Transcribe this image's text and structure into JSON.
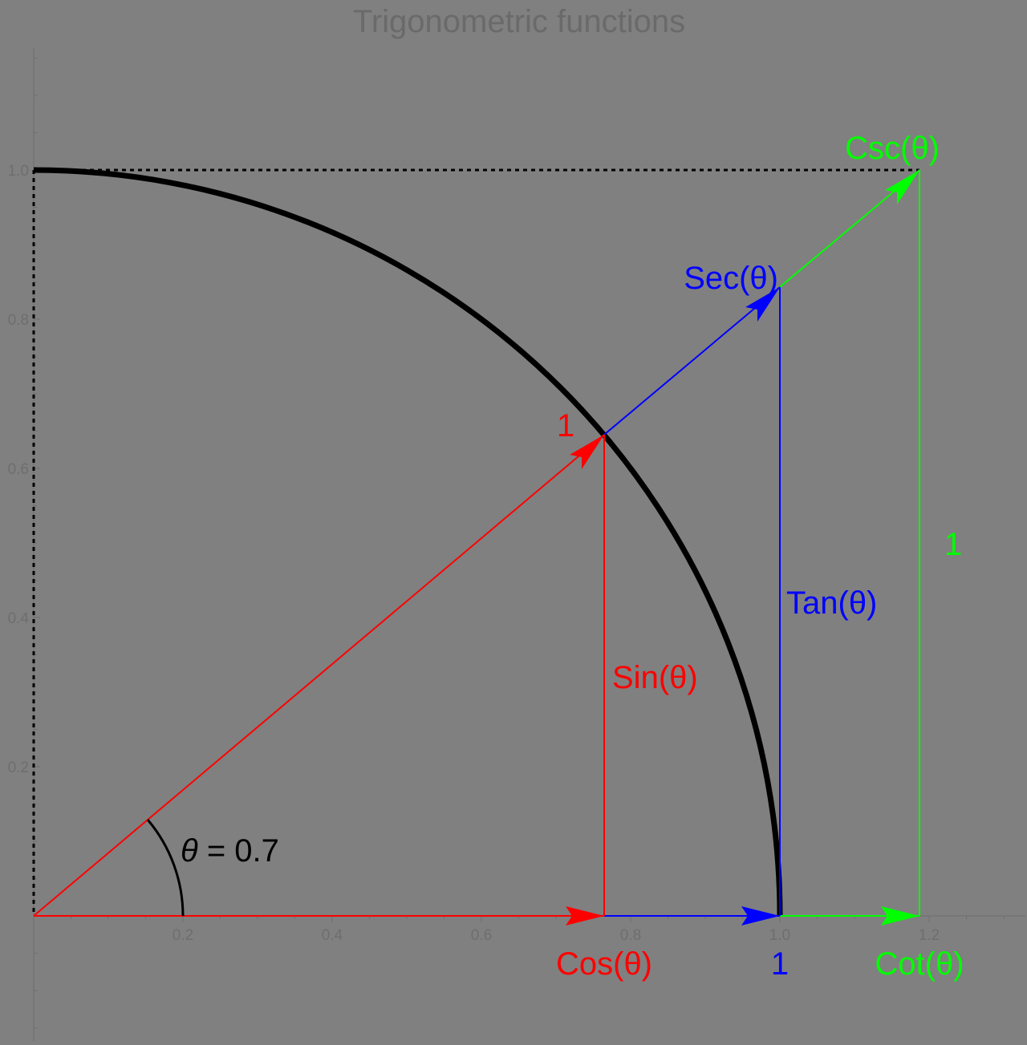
{
  "title": "Trigonometric functions",
  "axes": {
    "x_ticks": [
      "0.2",
      "0.4",
      "0.6",
      "0.8",
      "1.0",
      "1.2"
    ],
    "y_ticks": [
      "0.2",
      "0.4",
      "0.6",
      "0.8",
      "1.0"
    ]
  },
  "theta": 0.7,
  "angle_label": {
    "symbol": "θ",
    "rest": " = 0.7"
  },
  "labels": {
    "hypotenuse": "1",
    "sin": "Sin(θ)",
    "cos": "Cos(θ)",
    "tan": "Tan(θ)",
    "sec": "Sec(θ)",
    "csc": "Csc(θ)",
    "cot": "Cot(θ)",
    "unit_blue": "1",
    "unit_green": "1"
  },
  "colors": {
    "background": "#808080",
    "red": "#ff0000",
    "blue": "#0000ff",
    "green": "#00ff00",
    "circle": "#000000"
  }
}
